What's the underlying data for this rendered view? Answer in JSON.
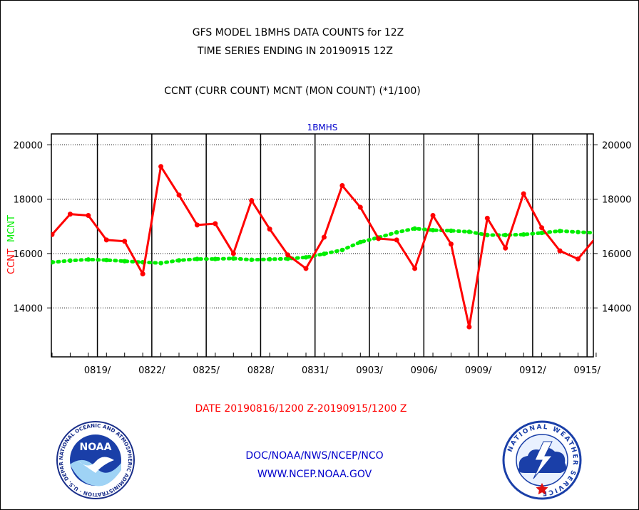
{
  "header": {
    "title_line1": "GFS MODEL 1BMHS DATA COUNTS for 12Z",
    "title_line2": "TIME SERIES ENDING IN 20190915 12Z",
    "subtitle": "CCNT (CURR COUNT) MCNT (MON COUNT) (*1/100)"
  },
  "footer": {
    "date_range": "DATE 20190816/1200 Z-20190915/1200 Z",
    "org": "DOC/NOAA/NWS/NCEP/NCO",
    "url": "WWW.NCEP.NOAA.GOV"
  },
  "logos": {
    "left": "NOAA",
    "left_ring_text": "NATIONAL OCEANIC AND ATMOSPHERIC ADMINISTRATION · U.S. DEPARTMENT OF COMMERCE",
    "right_ring_text": "NATIONAL WEATHER SERVICE"
  },
  "colors": {
    "ccnt": "#ff0000",
    "mcnt": "#00ee00",
    "panel_label": "#0000cc"
  },
  "chart_data": {
    "type": "line",
    "panel_label": "1BMHS",
    "ylabel_ccnt": "CCNT",
    "ylabel_mcnt": "MCNT",
    "x_tick_labels": [
      "0819/",
      "0822/",
      "0825/",
      "0828/",
      "0831/",
      "0903/",
      "0906/",
      "0909/",
      "0912/",
      "0915/"
    ],
    "y_tick_labels": [
      "20000",
      "18000",
      "16000",
      "14000"
    ],
    "ylim": [
      12200,
      20400
    ],
    "x_day_range": [
      0,
      30
    ],
    "grid": true,
    "series": [
      {
        "name": "CCNT",
        "x": [
          0,
          1,
          2,
          3,
          4,
          5,
          6,
          7,
          8,
          9,
          10,
          11,
          12,
          13,
          14,
          15,
          16,
          17,
          18,
          19,
          20,
          21,
          22,
          23,
          24,
          25,
          26,
          27,
          28,
          29,
          30
        ],
        "values": [
          16700,
          17450,
          17400,
          16500,
          16450,
          15250,
          19200,
          18150,
          17050,
          17100,
          16000,
          17950,
          16900,
          15950,
          15450,
          16600,
          18500,
          17700,
          16550,
          16500,
          15450,
          17400,
          16350,
          13300,
          17300,
          16200,
          18200,
          16950,
          16100,
          15800,
          16600
        ]
      },
      {
        "name": "MCNT",
        "x": [
          0,
          1,
          2,
          3,
          4,
          5,
          6,
          7,
          8,
          9,
          10,
          11,
          12,
          13,
          14,
          15,
          16,
          17,
          18,
          19,
          20,
          21,
          22,
          23,
          24,
          25,
          26,
          27,
          28,
          29,
          30
        ],
        "values": [
          15680,
          15740,
          15780,
          15760,
          15720,
          15680,
          15650,
          15750,
          15800,
          15800,
          15820,
          15770,
          15790,
          15810,
          15860,
          15990,
          16130,
          16420,
          16590,
          16780,
          16920,
          16860,
          16840,
          16800,
          16680,
          16680,
          16700,
          16760,
          16830,
          16790,
          16760
        ]
      }
    ]
  }
}
